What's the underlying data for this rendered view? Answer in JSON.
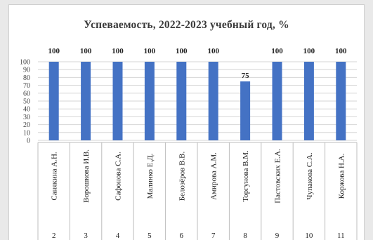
{
  "chart_data": {
    "type": "bar",
    "title": "Успеваемость, 2022-2023 учебный год, %",
    "categories": [
      "Санякина А.Н.",
      "Ворошкова И.В.",
      "Сафонова С.А.",
      "Малинко Е.Д.",
      "Белозёров В.В.",
      "Амирова А.М.",
      "Торгунова В.М.",
      "Пастовских Е.А.",
      "Чупакова С.А.",
      "Коржова Н.А."
    ],
    "class_numbers": [
      "2",
      "3",
      "4",
      "5",
      "6",
      "7",
      "8",
      "9",
      "10",
      "11"
    ],
    "values": [
      100,
      100,
      100,
      100,
      100,
      100,
      75,
      100,
      100,
      100
    ],
    "data_labels": [
      "100",
      "100",
      "100",
      "100",
      "100",
      "100",
      "75",
      "100",
      "100",
      "100"
    ],
    "ylim": [
      0,
      100
    ],
    "yticks": [
      0,
      10,
      20,
      30,
      40,
      50,
      60,
      70,
      80,
      90,
      100
    ],
    "grid": true,
    "legend": "none",
    "bar_color": "#4472c4"
  }
}
